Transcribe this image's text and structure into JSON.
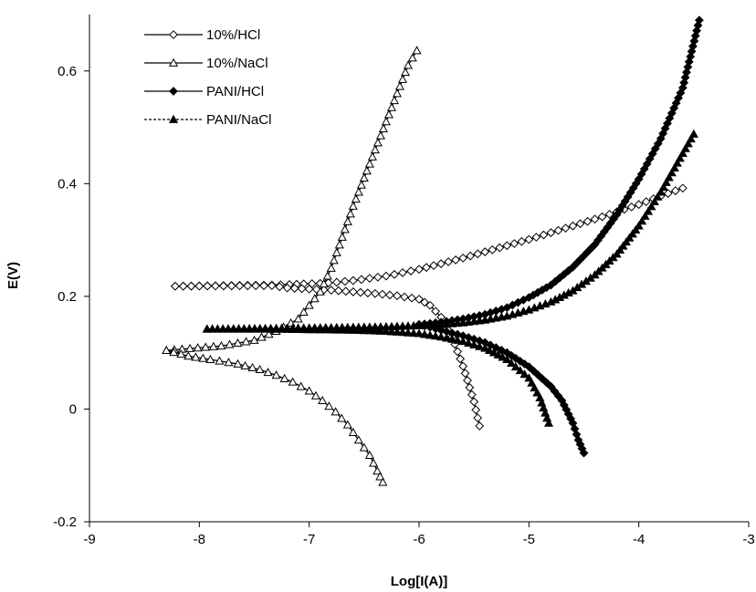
{
  "chart_data": {
    "type": "scatter",
    "title": "",
    "xlabel": "Log[I(A)]",
    "ylabel": "E(V)",
    "xlim": [
      -9,
      -3
    ],
    "ylim": [
      -0.2,
      0.7
    ],
    "xticks": [
      -9,
      -8,
      -7,
      -6,
      -5,
      -4,
      -3
    ],
    "yticks": [
      -0.2,
      0,
      0.2,
      0.4,
      0.6
    ],
    "xtick_labels": [
      "-9",
      "-8",
      "-7",
      "-6",
      "-5",
      "-4",
      "-3"
    ],
    "ytick_labels": [
      "-0.2",
      "0",
      "0.2",
      "0.4",
      "0.6"
    ],
    "grid": false,
    "legend_position": "top-left",
    "series": [
      {
        "name": "10%/HCl",
        "marker": "diamond-open",
        "line": "solid",
        "x": [
          -8.22,
          -7.34,
          -7.18,
          -7.05,
          -6.9,
          -6.75,
          -6.6,
          -6.45,
          -6.3,
          -6.15,
          -6.0,
          -5.8,
          -5.6,
          -5.4,
          -5.2,
          -5.0,
          -4.8,
          -4.6,
          -4.4,
          -4.2,
          -4.0,
          -3.8,
          -3.6
        ],
        "y": [
          0.218,
          0.22,
          0.221,
          0.222,
          0.223,
          0.225,
          0.228,
          0.232,
          0.236,
          0.242,
          0.248,
          0.258,
          0.268,
          0.279,
          0.29,
          0.301,
          0.313,
          0.325,
          0.337,
          0.35,
          0.363,
          0.378,
          0.392
        ]
      },
      {
        "name": "10%/HCl",
        "marker": "diamond-open",
        "line": "solid",
        "x": [
          -8.22,
          -7.34,
          -7.2,
          -7.0,
          -6.8,
          -6.6,
          -6.4,
          -6.2,
          -6.0,
          -5.9,
          -5.8,
          -5.7,
          -5.6,
          -5.5,
          -5.45
        ],
        "y": [
          0.218,
          0.219,
          0.215,
          0.213,
          0.211,
          0.208,
          0.205,
          0.201,
          0.195,
          0.184,
          0.163,
          0.128,
          0.076,
          0.013,
          -0.03
        ]
      },
      {
        "name": "10%/NaCl",
        "marker": "triangle-open",
        "line": "solid",
        "x": [
          -8.3,
          -7.8,
          -7.5,
          -7.3,
          -7.1,
          -6.9,
          -6.8,
          -6.7,
          -6.6,
          -6.5,
          -6.4,
          -6.3,
          -6.2,
          -6.1,
          -6.02
        ],
        "y": [
          0.104,
          0.112,
          0.122,
          0.138,
          0.16,
          0.208,
          0.25,
          0.305,
          0.36,
          0.41,
          0.46,
          0.51,
          0.56,
          0.61,
          0.636
        ]
      },
      {
        "name": "10%/NaCl",
        "marker": "triangle-open",
        "line": "solid",
        "x": [
          -8.3,
          -8.1,
          -7.9,
          -7.65,
          -7.45,
          -7.3,
          -7.15,
          -7.0,
          -6.88,
          -6.76,
          -6.65,
          -6.55,
          -6.45,
          -6.38,
          -6.33
        ],
        "y": [
          0.104,
          0.094,
          0.088,
          0.08,
          0.07,
          0.06,
          0.048,
          0.032,
          0.015,
          -0.005,
          -0.028,
          -0.055,
          -0.082,
          -0.11,
          -0.13
        ]
      },
      {
        "name": "PANI/HCl",
        "marker": "diamond-filled",
        "line": "solid",
        "x": [
          -6.0,
          -5.8,
          -5.6,
          -5.4,
          -5.2,
          -5.0,
          -4.8,
          -4.6,
          -4.4,
          -4.2,
          -4.0,
          -3.8,
          -3.6,
          -3.45
        ],
        "y": [
          0.15,
          0.154,
          0.16,
          0.168,
          0.18,
          0.198,
          0.22,
          0.252,
          0.292,
          0.345,
          0.408,
          0.48,
          0.57,
          0.69
        ]
      },
      {
        "name": "PANI/HCl",
        "marker": "diamond-filled",
        "line": "solid",
        "x": [
          -6.0,
          -5.8,
          -5.6,
          -5.4,
          -5.2,
          -5.0,
          -4.8,
          -4.7,
          -4.6,
          -4.55,
          -4.5
        ],
        "y": [
          0.15,
          0.14,
          0.13,
          0.118,
          0.1,
          0.075,
          0.04,
          0.015,
          -0.025,
          -0.055,
          -0.078
        ]
      },
      {
        "name": "PANI/NaCl",
        "marker": "triangle-filled",
        "line": "dotted",
        "x": [
          -7.93,
          -7.4,
          -7.0,
          -6.6,
          -6.3,
          -6.0,
          -5.8,
          -5.6,
          -5.4,
          -5.2,
          -5.0,
          -4.8,
          -4.6,
          -4.4,
          -4.2,
          -4.0,
          -3.8,
          -3.5
        ],
        "y": [
          0.142,
          0.143,
          0.144,
          0.145,
          0.146,
          0.148,
          0.15,
          0.153,
          0.158,
          0.165,
          0.176,
          0.19,
          0.21,
          0.238,
          0.275,
          0.325,
          0.385,
          0.488
        ]
      },
      {
        "name": "PANI/NaCl",
        "marker": "triangle-filled",
        "line": "dotted",
        "x": [
          -7.93,
          -7.4,
          -7.0,
          -6.6,
          -6.3,
          -6.0,
          -5.8,
          -5.6,
          -5.4,
          -5.2,
          -5.0,
          -4.9,
          -4.82
        ],
        "y": [
          0.142,
          0.142,
          0.141,
          0.14,
          0.138,
          0.134,
          0.128,
          0.12,
          0.108,
          0.088,
          0.055,
          0.02,
          -0.025
        ]
      }
    ],
    "legend": [
      {
        "label": "10%/HCl",
        "marker": "diamond-open",
        "line": "solid"
      },
      {
        "label": "10%/NaCl",
        "marker": "triangle-open",
        "line": "solid"
      },
      {
        "label": "PANI/HCl",
        "marker": "diamond-filled",
        "line": "solid"
      },
      {
        "label": "PANI/NaCl",
        "marker": "triangle-filled",
        "line": "dotted"
      }
    ],
    "colors": {
      "line": "#000000",
      "background": "#ffffff"
    }
  }
}
